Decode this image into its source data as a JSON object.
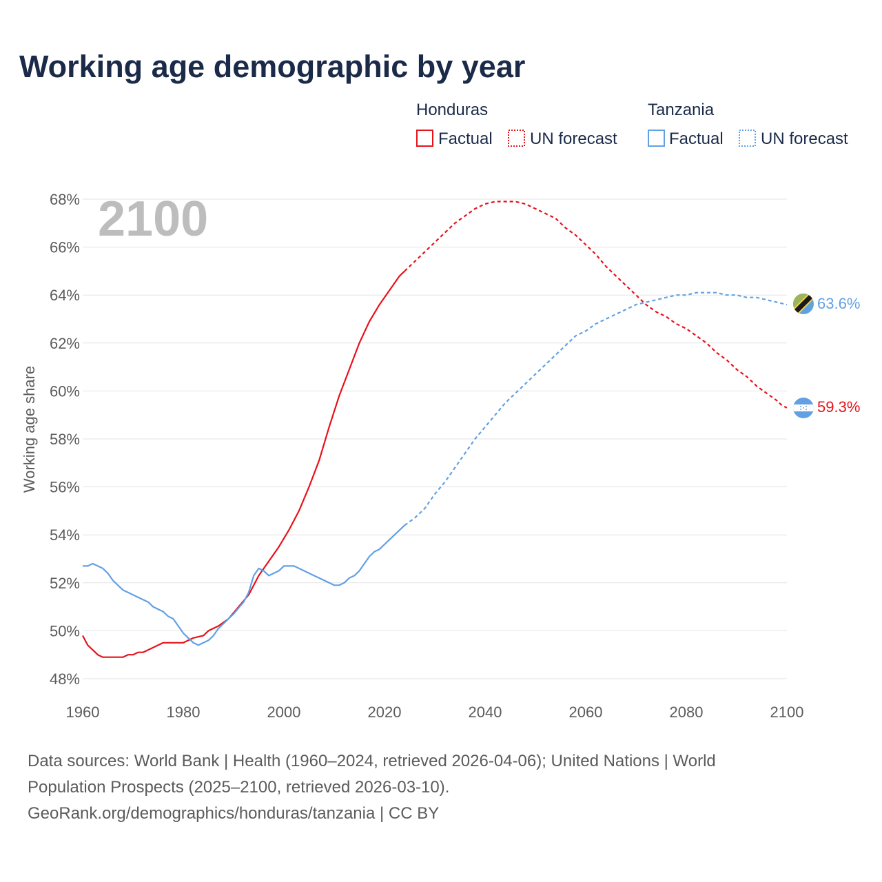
{
  "title": "Working age demographic by year",
  "year_watermark": "2100",
  "legend": {
    "groups": [
      {
        "country": "Honduras",
        "factual": "Factual",
        "forecast": "UN forecast"
      },
      {
        "country": "Tanzania",
        "factual": "Factual",
        "forecast": "UN forecast"
      }
    ]
  },
  "colors": {
    "honduras": "#e8111a",
    "tanzania": "#62a0e4",
    "grid": "#e3e3e3",
    "title": "#1a2a48",
    "text": "#5b5b5b"
  },
  "icons": {
    "honduras_flag": "honduras-flag-icon",
    "tanzania_flag": "tanzania-flag-icon"
  },
  "footer": {
    "line1": "Data sources: World Bank | Health (1960–2024, retrieved 2026-04-06); United Nations | World",
    "line2": "Population Prospects (2025–2100, retrieved 2026-03-10).",
    "line3": "GeoRank.org/demographics/honduras/tanzania | CC BY"
  },
  "chart_data": {
    "type": "line",
    "title": "Working age demographic by year",
    "xlabel": "",
    "ylabel": "Working age share",
    "xlim": [
      1960,
      2100
    ],
    "ylim": [
      48,
      68
    ],
    "x_ticks": [
      "1960",
      "1980",
      "2000",
      "2020",
      "2040",
      "2060",
      "2080",
      "2100"
    ],
    "y_ticks": [
      "48%",
      "50%",
      "52%",
      "54%",
      "56%",
      "58%",
      "60%",
      "62%",
      "64%",
      "66%",
      "68%"
    ],
    "factual_range": [
      1960,
      2024
    ],
    "forecast_range": [
      2024,
      2100
    ],
    "series": [
      {
        "name": "Honduras",
        "end_label": "59.3%",
        "points": [
          [
            1960,
            49.8
          ],
          [
            1961,
            49.4
          ],
          [
            1962,
            49.2
          ],
          [
            1963,
            49.0
          ],
          [
            1964,
            48.9
          ],
          [
            1966,
            48.9
          ],
          [
            1968,
            48.9
          ],
          [
            1969,
            49.0
          ],
          [
            1970,
            49.0
          ],
          [
            1971,
            49.1
          ],
          [
            1972,
            49.1
          ],
          [
            1974,
            49.3
          ],
          [
            1976,
            49.5
          ],
          [
            1978,
            49.5
          ],
          [
            1980,
            49.5
          ],
          [
            1982,
            49.7
          ],
          [
            1984,
            49.8
          ],
          [
            1985,
            50.0
          ],
          [
            1987,
            50.2
          ],
          [
            1989,
            50.5
          ],
          [
            1991,
            51.0
          ],
          [
            1993,
            51.5
          ],
          [
            1995,
            52.3
          ],
          [
            1997,
            52.9
          ],
          [
            1999,
            53.5
          ],
          [
            2001,
            54.2
          ],
          [
            2003,
            55.0
          ],
          [
            2005,
            56.0
          ],
          [
            2007,
            57.1
          ],
          [
            2009,
            58.5
          ],
          [
            2011,
            59.8
          ],
          [
            2013,
            60.9
          ],
          [
            2015,
            62.0
          ],
          [
            2017,
            62.9
          ],
          [
            2019,
            63.6
          ],
          [
            2021,
            64.2
          ],
          [
            2023,
            64.8
          ],
          [
            2024,
            65.0
          ],
          [
            2026,
            65.4
          ],
          [
            2028,
            65.8
          ],
          [
            2030,
            66.2
          ],
          [
            2032,
            66.6
          ],
          [
            2034,
            67.0
          ],
          [
            2036,
            67.3
          ],
          [
            2038,
            67.6
          ],
          [
            2040,
            67.8
          ],
          [
            2042,
            67.9
          ],
          [
            2044,
            67.9
          ],
          [
            2046,
            67.9
          ],
          [
            2048,
            67.8
          ],
          [
            2050,
            67.6
          ],
          [
            2052,
            67.4
          ],
          [
            2054,
            67.2
          ],
          [
            2056,
            66.8
          ],
          [
            2058,
            66.5
          ],
          [
            2060,
            66.1
          ],
          [
            2062,
            65.7
          ],
          [
            2064,
            65.2
          ],
          [
            2066,
            64.8
          ],
          [
            2068,
            64.4
          ],
          [
            2070,
            64.0
          ],
          [
            2072,
            63.6
          ],
          [
            2074,
            63.3
          ],
          [
            2076,
            63.1
          ],
          [
            2078,
            62.8
          ],
          [
            2080,
            62.6
          ],
          [
            2082,
            62.3
          ],
          [
            2084,
            62.0
          ],
          [
            2086,
            61.6
          ],
          [
            2088,
            61.3
          ],
          [
            2090,
            60.9
          ],
          [
            2092,
            60.6
          ],
          [
            2094,
            60.2
          ],
          [
            2096,
            59.9
          ],
          [
            2098,
            59.6
          ],
          [
            2099,
            59.4
          ],
          [
            2100,
            59.3
          ]
        ]
      },
      {
        "name": "Tanzania",
        "end_label": "63.6%",
        "points": [
          [
            1960,
            52.7
          ],
          [
            1961,
            52.7
          ],
          [
            1962,
            52.8
          ],
          [
            1963,
            52.7
          ],
          [
            1964,
            52.6
          ],
          [
            1965,
            52.4
          ],
          [
            1966,
            52.1
          ],
          [
            1968,
            51.7
          ],
          [
            1970,
            51.5
          ],
          [
            1972,
            51.3
          ],
          [
            1973,
            51.2
          ],
          [
            1974,
            51.0
          ],
          [
            1976,
            50.8
          ],
          [
            1977,
            50.6
          ],
          [
            1978,
            50.5
          ],
          [
            1980,
            49.9
          ],
          [
            1982,
            49.5
          ],
          [
            1983,
            49.4
          ],
          [
            1985,
            49.6
          ],
          [
            1986,
            49.8
          ],
          [
            1987,
            50.1
          ],
          [
            1988,
            50.3
          ],
          [
            1990,
            50.7
          ],
          [
            1992,
            51.2
          ],
          [
            1993,
            51.6
          ],
          [
            1994,
            52.3
          ],
          [
            1995,
            52.6
          ],
          [
            1996,
            52.5
          ],
          [
            1997,
            52.3
          ],
          [
            1998,
            52.4
          ],
          [
            1999,
            52.5
          ],
          [
            2000,
            52.7
          ],
          [
            2002,
            52.7
          ],
          [
            2004,
            52.5
          ],
          [
            2006,
            52.3
          ],
          [
            2008,
            52.1
          ],
          [
            2010,
            51.9
          ],
          [
            2011,
            51.9
          ],
          [
            2012,
            52.0
          ],
          [
            2013,
            52.2
          ],
          [
            2014,
            52.3
          ],
          [
            2015,
            52.5
          ],
          [
            2016,
            52.8
          ],
          [
            2017,
            53.1
          ],
          [
            2018,
            53.3
          ],
          [
            2019,
            53.4
          ],
          [
            2020,
            53.6
          ],
          [
            2022,
            54.0
          ],
          [
            2024,
            54.4
          ],
          [
            2026,
            54.7
          ],
          [
            2028,
            55.1
          ],
          [
            2030,
            55.7
          ],
          [
            2032,
            56.2
          ],
          [
            2034,
            56.8
          ],
          [
            2036,
            57.4
          ],
          [
            2038,
            58.0
          ],
          [
            2040,
            58.5
          ],
          [
            2042,
            59.0
          ],
          [
            2044,
            59.5
          ],
          [
            2046,
            59.9
          ],
          [
            2048,
            60.3
          ],
          [
            2050,
            60.7
          ],
          [
            2052,
            61.1
          ],
          [
            2054,
            61.5
          ],
          [
            2056,
            61.9
          ],
          [
            2058,
            62.3
          ],
          [
            2060,
            62.5
          ],
          [
            2062,
            62.8
          ],
          [
            2064,
            63.0
          ],
          [
            2066,
            63.2
          ],
          [
            2068,
            63.4
          ],
          [
            2070,
            63.6
          ],
          [
            2072,
            63.7
          ],
          [
            2074,
            63.8
          ],
          [
            2076,
            63.9
          ],
          [
            2078,
            64.0
          ],
          [
            2080,
            64.0
          ],
          [
            2082,
            64.1
          ],
          [
            2084,
            64.1
          ],
          [
            2086,
            64.1
          ],
          [
            2088,
            64.0
          ],
          [
            2090,
            64.0
          ],
          [
            2092,
            63.9
          ],
          [
            2094,
            63.9
          ],
          [
            2096,
            63.8
          ],
          [
            2098,
            63.7
          ],
          [
            2100,
            63.6
          ]
        ]
      }
    ]
  }
}
